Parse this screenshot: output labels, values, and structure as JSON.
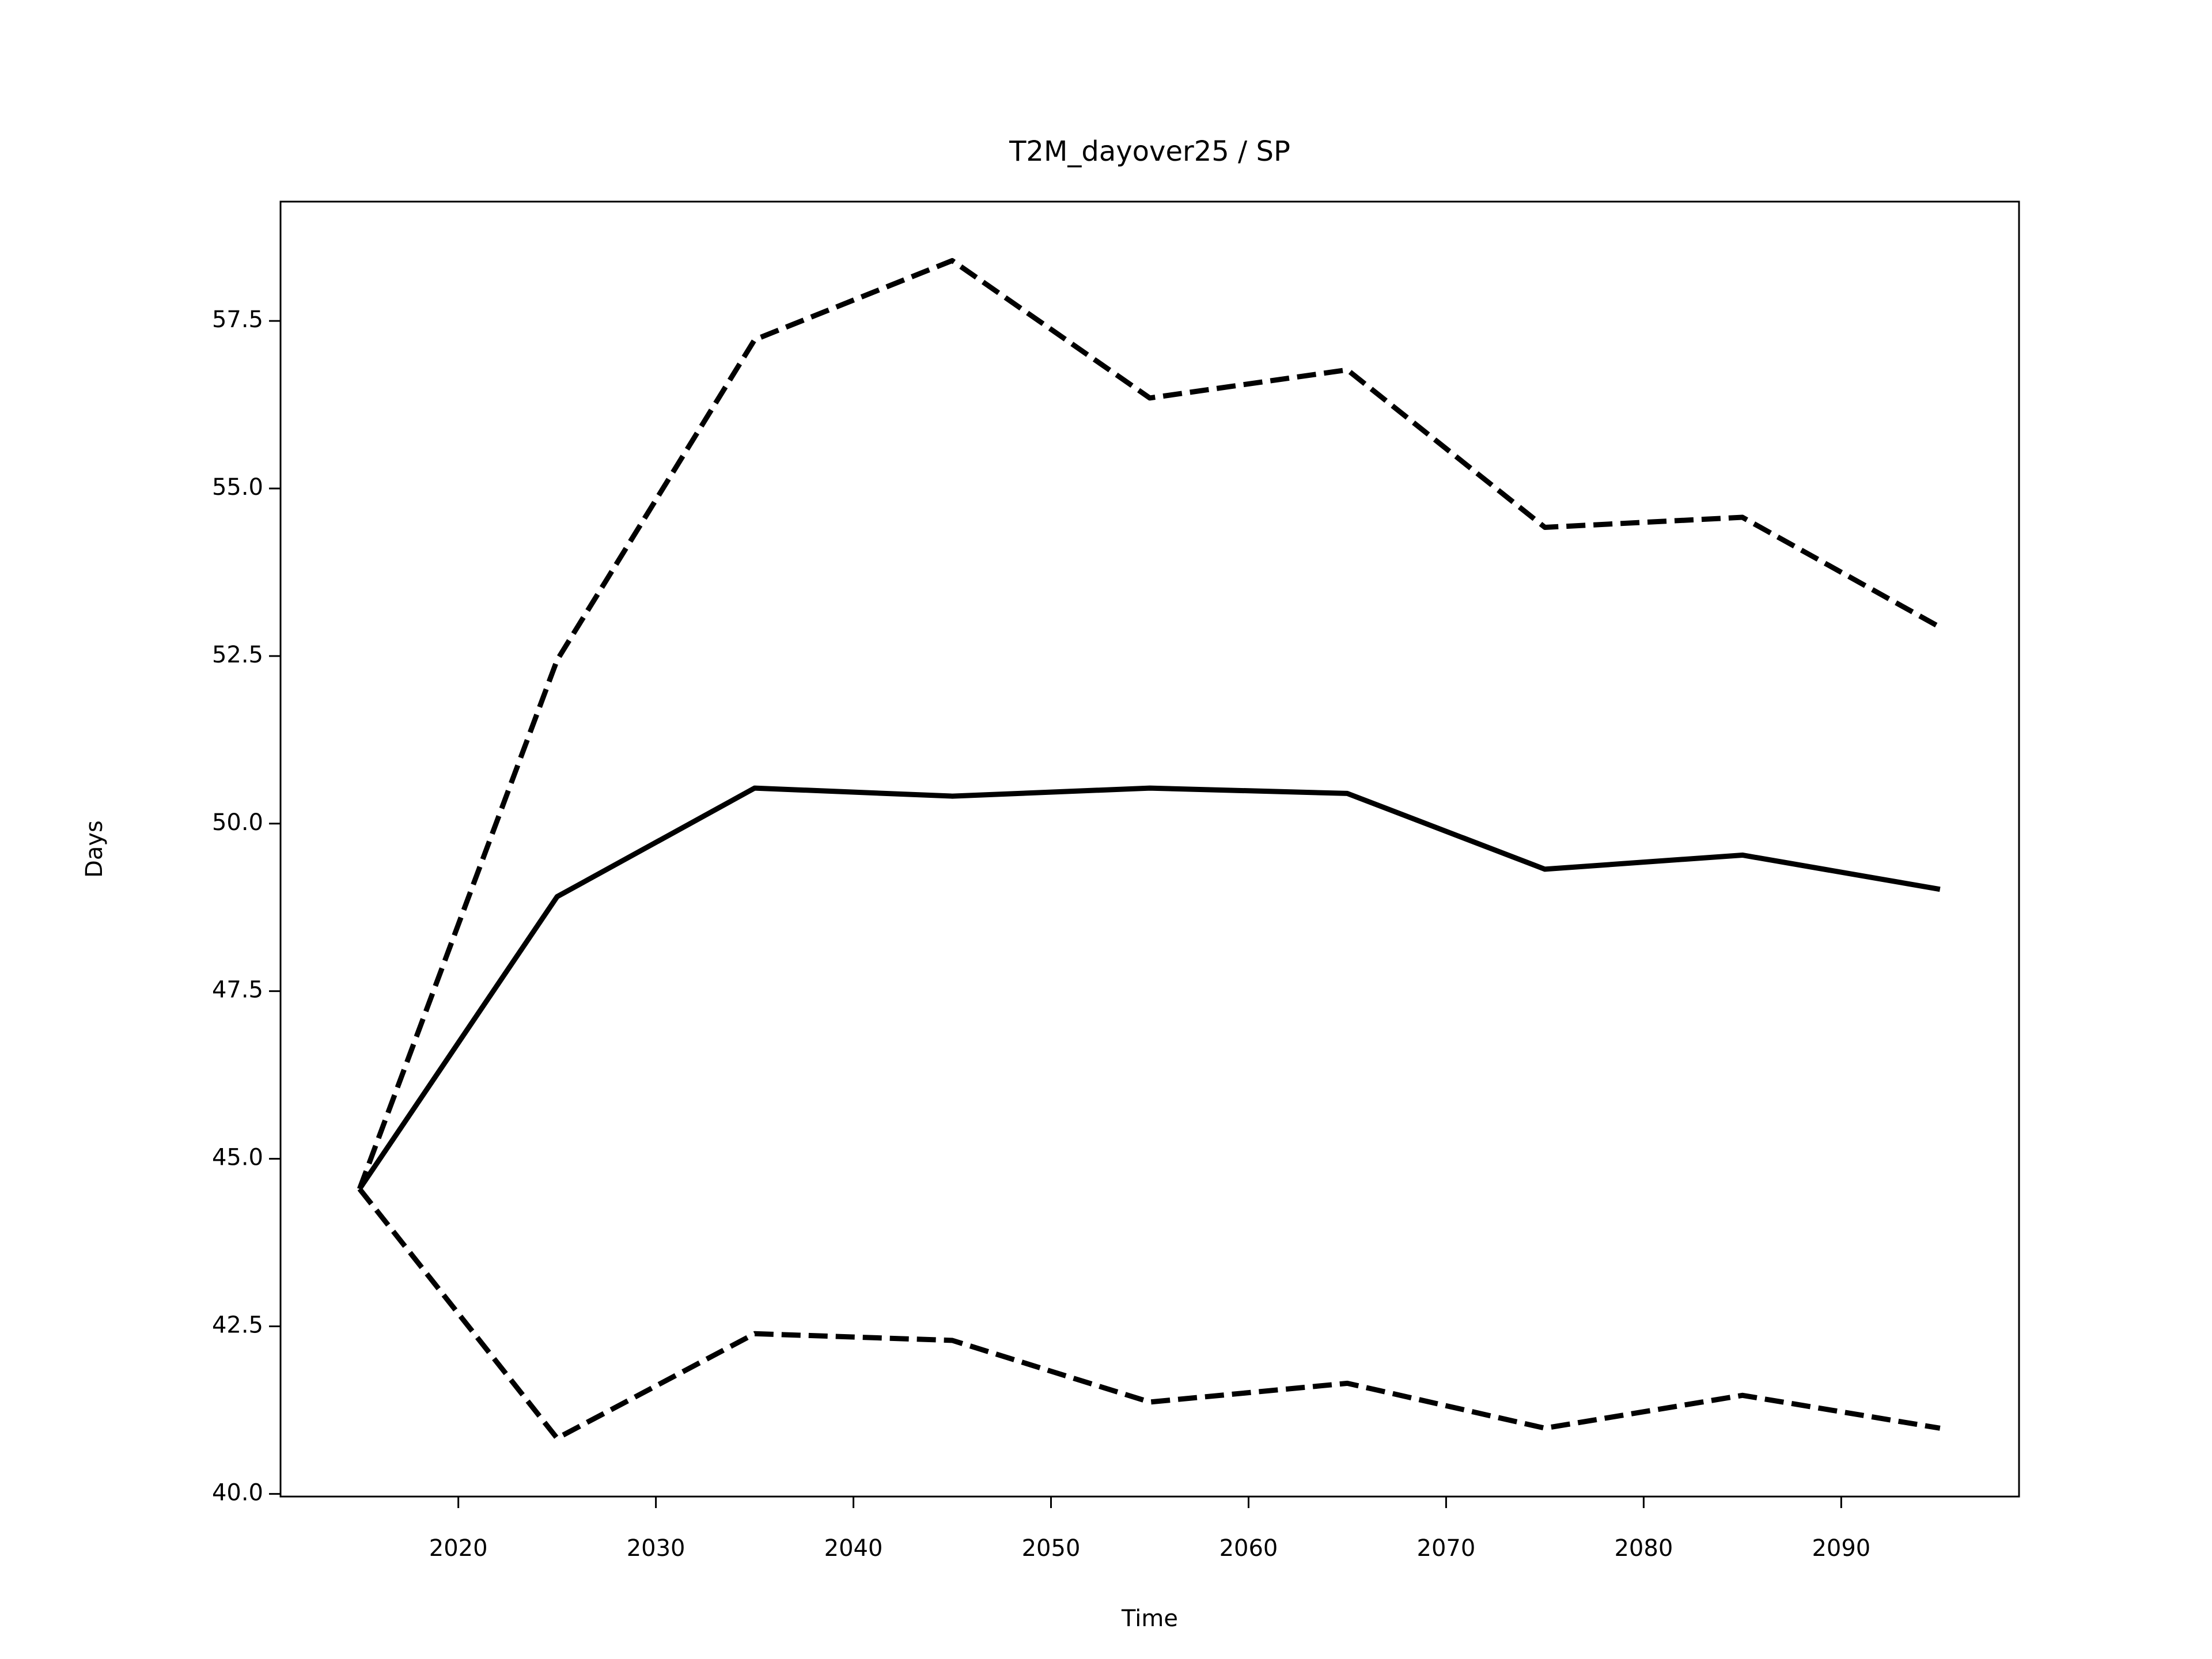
{
  "chart_data": {
    "type": "line",
    "title": "T2M_dayover25 / SP",
    "xlabel": "Time",
    "ylabel": "Days",
    "x": [
      2015,
      2025,
      2035,
      2045,
      2055,
      2065,
      2075,
      2085,
      2095
    ],
    "series": [
      {
        "color": "#000000",
        "linestyle": "solid",
        "values": [
          44.55,
          48.91,
          50.53,
          50.41,
          50.53,
          50.45,
          49.32,
          49.53,
          49.02
        ]
      },
      {
        "color": "#000000",
        "linestyle": "dashed",
        "values": [
          44.55,
          52.44,
          57.22,
          58.4,
          56.35,
          56.77,
          54.42,
          54.57,
          52.93
        ]
      },
      {
        "color": "#000000",
        "linestyle": "dashed",
        "values": [
          44.55,
          40.83,
          42.39,
          42.29,
          41.37,
          41.65,
          40.98,
          41.47,
          40.98
        ]
      }
    ],
    "xlim": [
      2011,
      2099
    ],
    "ylim": [
      39.96,
      59.28
    ],
    "xticks": [
      2020,
      2030,
      2040,
      2050,
      2060,
      2070,
      2080,
      2090
    ],
    "yticks": [
      {
        "value": 40,
        "label": "40.0"
      },
      42.5,
      {
        "value": 45,
        "label": "45.0"
      },
      47.5,
      {
        "value": 50,
        "label": "50.0"
      },
      52.5,
      {
        "value": 55,
        "label": "55.0"
      },
      57.5
    ],
    "grid": false
  }
}
